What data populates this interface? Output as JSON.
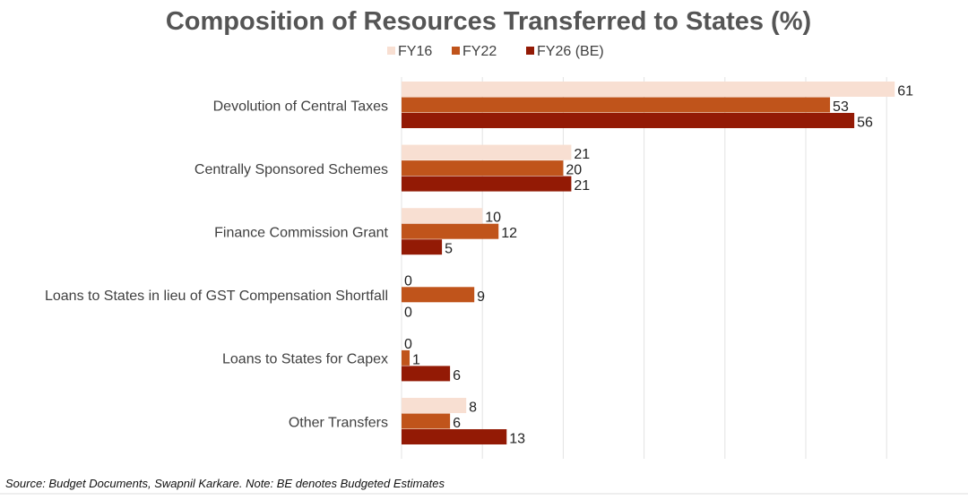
{
  "chart_data": {
    "type": "bar",
    "orientation": "horizontal",
    "title": "Composition of Resources Transferred to States (%)",
    "categories": [
      "Devolution of Central Taxes",
      "Centrally Sponsored Schemes",
      "Finance Commission Grant",
      "Loans to States in lieu of GST Compensation Shortfall",
      "Loans to States for Capex",
      "Other Transfers"
    ],
    "series": [
      {
        "name": "FY16",
        "color": "#f8dfd2",
        "values": [
          61,
          21,
          10,
          0,
          0,
          8
        ]
      },
      {
        "name": "FY22",
        "color": "#c0541b",
        "values": [
          53,
          20,
          12,
          9,
          1,
          6
        ]
      },
      {
        "name": "FY26 (BE)",
        "color": "#931a05",
        "values": [
          56,
          21,
          5,
          0,
          6,
          13
        ]
      }
    ],
    "xlim": [
      0,
      61
    ],
    "grid_step": 10,
    "grid": true,
    "legend": "top",
    "data_labels": true
  },
  "source_note": "Source: Budget Documents, Swapnil Karkare. Note: BE denotes Budgeted Estimates"
}
